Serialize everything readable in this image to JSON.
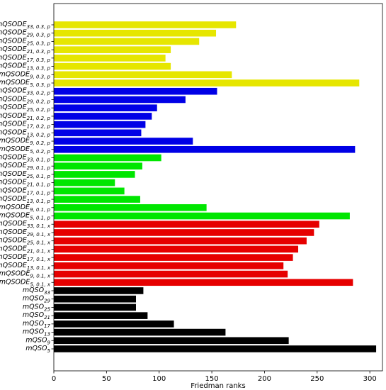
{
  "chart_data": {
    "type": "bar",
    "orientation": "horizontal",
    "xlabel": "Friedman ranks",
    "ylabel": "",
    "xlim": [
      0,
      312
    ],
    "xticks": [
      0,
      50,
      100,
      150,
      200,
      250,
      300
    ],
    "grid": false,
    "legend": "none",
    "categories": [
      {
        "base": "mQSODE",
        "sub": "33, 0.3, p",
        "value": 173,
        "color": "#e6e600"
      },
      {
        "base": "mQSODE",
        "sub": "29, 0.3, p",
        "value": 154,
        "color": "#e6e600"
      },
      {
        "base": "mQSODE",
        "sub": "25, 0.3, p",
        "value": 138,
        "color": "#e6e600"
      },
      {
        "base": "mQSODE",
        "sub": "21, 0.3, p",
        "value": 111,
        "color": "#e6e600"
      },
      {
        "base": "mQSODE",
        "sub": "17, 0.3, p",
        "value": 106,
        "color": "#e6e600"
      },
      {
        "base": "mQSODE",
        "sub": "13, 0.3, p",
        "value": 111,
        "color": "#e6e600"
      },
      {
        "base": "mQSODE",
        "sub": "9, 0.3, p",
        "value": 169,
        "color": "#e6e600"
      },
      {
        "base": "mQSODE",
        "sub": "5, 0.3, p",
        "value": 290,
        "color": "#e6e600"
      },
      {
        "base": "mQSODE",
        "sub": "33, 0.2, p",
        "value": 155,
        "color": "#0000e6"
      },
      {
        "base": "mQSODE",
        "sub": "29, 0.2, p",
        "value": 125,
        "color": "#0000e6"
      },
      {
        "base": "mQSODE",
        "sub": "25, 0.2, p",
        "value": 98,
        "color": "#0000e6"
      },
      {
        "base": "mQSODE",
        "sub": "21, 0.2, p",
        "value": 93,
        "color": "#0000e6"
      },
      {
        "base": "mQSODE",
        "sub": "17, 0.2, p",
        "value": 87,
        "color": "#0000e6"
      },
      {
        "base": "mQSODE",
        "sub": "13, 0.2, p",
        "value": 83,
        "color": "#0000e6"
      },
      {
        "base": "mQSODE",
        "sub": "9, 0.2, p",
        "value": 132,
        "color": "#0000e6"
      },
      {
        "base": "mQSODE",
        "sub": "5, 0.2, p",
        "value": 286,
        "color": "#0000e6"
      },
      {
        "base": "mQSODE",
        "sub": "33, 0.1, p",
        "value": 102,
        "color": "#00e600"
      },
      {
        "base": "mQSODE",
        "sub": "29, 0.1, p",
        "value": 84,
        "color": "#00e600"
      },
      {
        "base": "mQSODE",
        "sub": "25, 0.1, p",
        "value": 77,
        "color": "#00e600"
      },
      {
        "base": "mQSODE",
        "sub": "21, 0.1, p",
        "value": 58,
        "color": "#00e600"
      },
      {
        "base": "mQSODE",
        "sub": "17, 0.1, p",
        "value": 67,
        "color": "#00e600"
      },
      {
        "base": "mQSODE",
        "sub": "13, 0.1, p",
        "value": 82,
        "color": "#00e600"
      },
      {
        "base": "mQSODE",
        "sub": "9, 0.1, p",
        "value": 145,
        "color": "#00e600"
      },
      {
        "base": "mQSODE",
        "sub": "5, 0.1, p",
        "value": 281,
        "color": "#00e600"
      },
      {
        "base": "mQSODE",
        "sub": "33, 0.1, x",
        "value": 252,
        "color": "#e60000"
      },
      {
        "base": "mQSODE",
        "sub": "29, 0.1, x",
        "value": 247,
        "color": "#e60000"
      },
      {
        "base": "mQSODE",
        "sub": "25, 0.1, x",
        "value": 240,
        "color": "#e60000"
      },
      {
        "base": "mQSODE",
        "sub": "21, 0.1, x",
        "value": 232,
        "color": "#e60000"
      },
      {
        "base": "mQSODE",
        "sub": "17, 0.1, x",
        "value": 227,
        "color": "#e60000"
      },
      {
        "base": "mQSODE",
        "sub": "13, 0.1, x",
        "value": 218,
        "color": "#e60000"
      },
      {
        "base": "mQSODE",
        "sub": "9, 0.1, x",
        "value": 222,
        "color": "#e60000"
      },
      {
        "base": "mQSODE",
        "sub": "5, 0.1, x",
        "value": 284,
        "color": "#e60000"
      },
      {
        "base": "mQSO",
        "sub": "33",
        "value": 85,
        "color": "#000000"
      },
      {
        "base": "mQSO",
        "sub": "29",
        "value": 78,
        "color": "#000000"
      },
      {
        "base": "mQSO",
        "sub": "25",
        "value": 78,
        "color": "#000000"
      },
      {
        "base": "mQSO",
        "sub": "21",
        "value": 89,
        "color": "#000000"
      },
      {
        "base": "mQSO",
        "sub": "17",
        "value": 114,
        "color": "#000000"
      },
      {
        "base": "mQSO",
        "sub": "13",
        "value": 163,
        "color": "#000000"
      },
      {
        "base": "mQSO",
        "sub": "9",
        "value": 223,
        "color": "#000000"
      },
      {
        "base": "mQSO",
        "sub": "5",
        "value": 306,
        "color": "#000000"
      }
    ]
  }
}
